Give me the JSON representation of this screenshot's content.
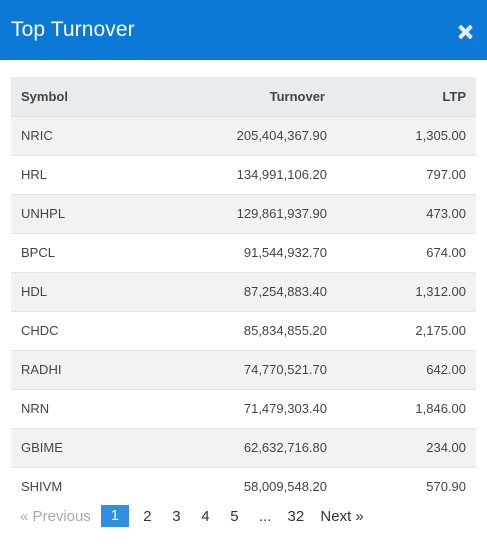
{
  "header": {
    "title": "Top Turnover",
    "close_icon": "close-icon"
  },
  "table": {
    "columns": [
      "Symbol",
      "Turnover",
      "LTP"
    ],
    "rows": [
      {
        "symbol": "NRIC",
        "turnover": "205,404,367.90",
        "ltp": "1,305.00"
      },
      {
        "symbol": "HRL",
        "turnover": "134,991,106.20",
        "ltp": "797.00"
      },
      {
        "symbol": "UNHPL",
        "turnover": "129,861,937.90",
        "ltp": "473.00"
      },
      {
        "symbol": "BPCL",
        "turnover": "91,544,932.70",
        "ltp": "674.00"
      },
      {
        "symbol": "HDL",
        "turnover": "87,254,883.40",
        "ltp": "1,312.00"
      },
      {
        "symbol": "CHDC",
        "turnover": "85,834,855.20",
        "ltp": "2,175.00"
      },
      {
        "symbol": "RADHI",
        "turnover": "74,770,521.70",
        "ltp": "642.00"
      },
      {
        "symbol": "NRN",
        "turnover": "71,479,303.40",
        "ltp": "1,846.00"
      },
      {
        "symbol": "GBIME",
        "turnover": "62,632,716.80",
        "ltp": "234.00"
      },
      {
        "symbol": "SHIVM",
        "turnover": "58,009,548.20",
        "ltp": "570.90"
      }
    ]
  },
  "pagination": {
    "previous": "«  Previous",
    "pages": [
      "1",
      "2",
      "3",
      "4",
      "5"
    ],
    "ellipsis": "...",
    "last_page": "32",
    "next": "Next  »",
    "active_page": "1",
    "accent": "#2f8fe0"
  },
  "colors": {
    "header_bg": "#0d79d6"
  }
}
